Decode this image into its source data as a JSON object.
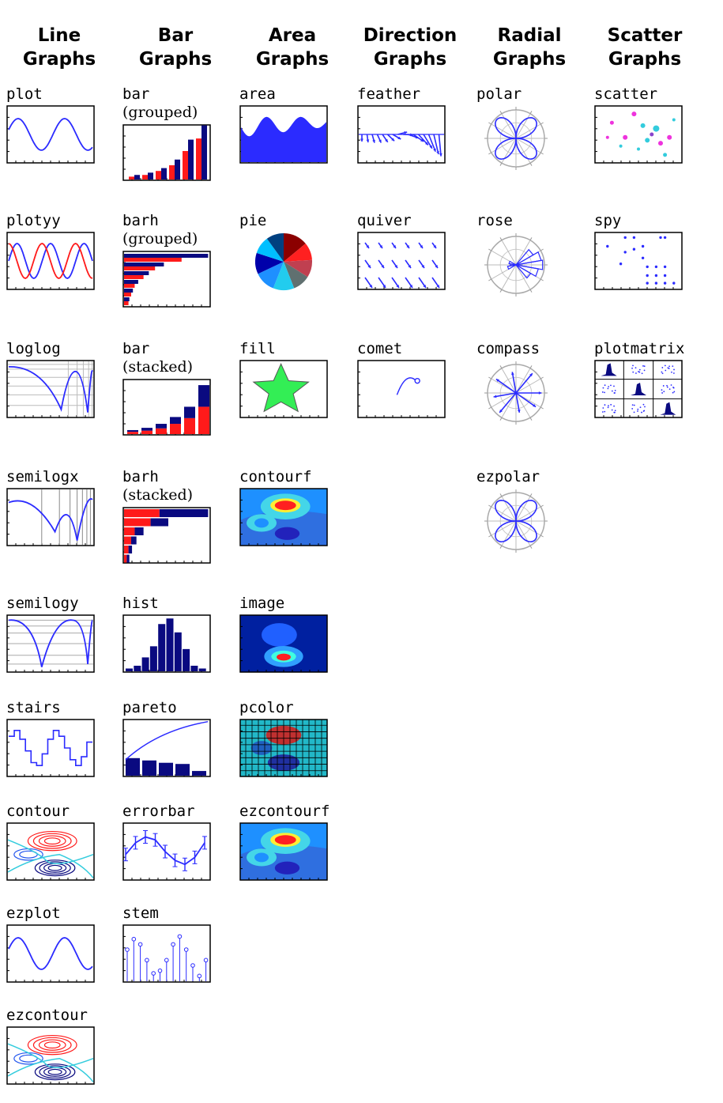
{
  "columns": [
    {
      "line1": "Line",
      "line2": "Graphs",
      "items": [
        {
          "id": "plot",
          "label": "plot",
          "sub": ""
        },
        {
          "id": "plotyy",
          "label": "plotyy",
          "sub": ""
        },
        {
          "id": "loglog",
          "label": "loglog",
          "sub": ""
        },
        {
          "id": "semilogx",
          "label": "semilogx",
          "sub": ""
        },
        {
          "id": "semilogy",
          "label": "semilogy",
          "sub": ""
        },
        {
          "id": "stairs",
          "label": "stairs",
          "sub": ""
        },
        {
          "id": "contour",
          "label": "contour",
          "sub": ""
        },
        {
          "id": "ezplot",
          "label": "ezplot",
          "sub": ""
        },
        {
          "id": "ezcontour",
          "label": "ezcontour",
          "sub": ""
        }
      ]
    },
    {
      "line1": "Bar",
      "line2": "Graphs",
      "items": [
        {
          "id": "bar-grouped",
          "label": "bar",
          "sub": "(grouped)"
        },
        {
          "id": "barh-grouped",
          "label": "barh",
          "sub": "(grouped)"
        },
        {
          "id": "bar-stacked",
          "label": "bar",
          "sub": "(stacked)"
        },
        {
          "id": "barh-stacked",
          "label": "barh",
          "sub": "(stacked)"
        },
        {
          "id": "hist",
          "label": "hist",
          "sub": ""
        },
        {
          "id": "pareto",
          "label": "pareto",
          "sub": ""
        },
        {
          "id": "errorbar",
          "label": "errorbar",
          "sub": ""
        },
        {
          "id": "stem",
          "label": "stem",
          "sub": ""
        }
      ]
    },
    {
      "line1": "Area",
      "line2": "Graphs",
      "items": [
        {
          "id": "area",
          "label": "area",
          "sub": ""
        },
        {
          "id": "pie",
          "label": "pie",
          "sub": ""
        },
        {
          "id": "fill",
          "label": "fill",
          "sub": ""
        },
        {
          "id": "contourf",
          "label": "contourf",
          "sub": ""
        },
        {
          "id": "image",
          "label": "image",
          "sub": ""
        },
        {
          "id": "pcolor",
          "label": "pcolor",
          "sub": ""
        },
        {
          "id": "ezcontourf",
          "label": "ezcontourf",
          "sub": ""
        }
      ]
    },
    {
      "line1": "Direction",
      "line2": "Graphs",
      "items": [
        {
          "id": "feather",
          "label": "feather",
          "sub": ""
        },
        {
          "id": "quiver",
          "label": "quiver",
          "sub": ""
        },
        {
          "id": "comet",
          "label": "comet",
          "sub": ""
        }
      ]
    },
    {
      "line1": "Radial",
      "line2": "Graphs",
      "items": [
        {
          "id": "polar",
          "label": "polar",
          "sub": ""
        },
        {
          "id": "rose",
          "label": "rose",
          "sub": ""
        },
        {
          "id": "compass",
          "label": "compass",
          "sub": ""
        },
        {
          "id": "ezpolar",
          "label": "ezpolar",
          "sub": ""
        }
      ]
    },
    {
      "line1": "Scatter",
      "line2": "Graphs",
      "items": [
        {
          "id": "scatter",
          "label": "scatter",
          "sub": ""
        },
        {
          "id": "spy",
          "label": "spy",
          "sub": ""
        },
        {
          "id": "plotmatrix",
          "label": "plotmatrix",
          "sub": ""
        }
      ]
    }
  ],
  "colors": {
    "blue": "#2b2bff",
    "navy": "#0a0a80",
    "red": "#ff1a1a",
    "cyan": "#33ccdd",
    "magenta": "#ee33dd",
    "green": "#33ee55"
  }
}
